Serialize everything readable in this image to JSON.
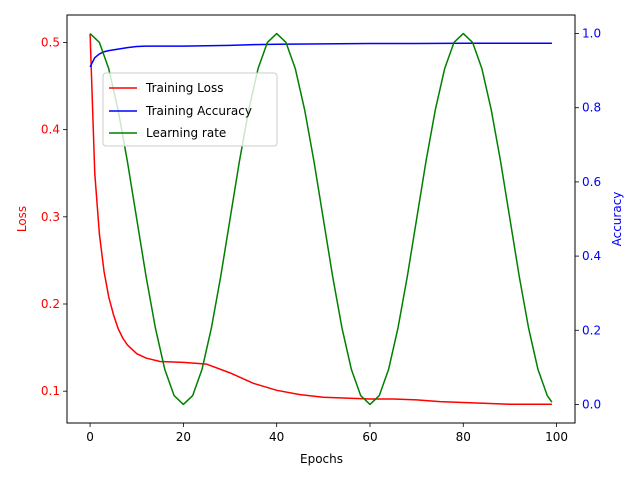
{
  "chart_data": {
    "type": "line",
    "title": "",
    "xlabel": "Epochs",
    "ylabel_left": "Loss",
    "ylabel_right": "Accuracy",
    "colors": {
      "loss": "#ff0000",
      "accuracy": "#0000ff",
      "lr": "#008000",
      "axis": "#000000"
    },
    "xlim": [
      -4.95,
      103.95
    ],
    "ylim_left": [
      0.0635,
      0.5315
    ],
    "ylim_right": [
      -0.05,
      1.05
    ],
    "x_ticks": [
      0,
      20,
      40,
      60,
      80,
      100
    ],
    "x_tick_labels": [
      "0",
      "20",
      "40",
      "60",
      "80",
      "100"
    ],
    "left_ticks": [
      0.1,
      0.2,
      0.3,
      0.4,
      0.5
    ],
    "left_tick_labels": [
      "0.1",
      "0.2",
      "0.3",
      "0.4",
      "0.5"
    ],
    "right_ticks": [
      0.0,
      0.2,
      0.4,
      0.6,
      0.8,
      1.0
    ],
    "right_tick_labels": [
      "0.0",
      "0.2",
      "0.4",
      "0.6",
      "0.8",
      "1.0"
    ],
    "legend": {
      "placement": "upper-left (inset)",
      "entries": [
        {
          "label": "Training Loss",
          "series": "loss"
        },
        {
          "label": "Training Accuracy",
          "series": "accuracy"
        },
        {
          "label": "Learning rate",
          "series": "lr"
        }
      ]
    },
    "series": [
      {
        "name": "Training Loss",
        "key": "loss",
        "axis": "left",
        "x": [
          0,
          1,
          2,
          3,
          4,
          5,
          6,
          7,
          8,
          10,
          12,
          15,
          20,
          25,
          30,
          35,
          40,
          45,
          50,
          55,
          60,
          65,
          70,
          75,
          80,
          85,
          90,
          95,
          99
        ],
        "values": [
          0.51,
          0.35,
          0.28,
          0.237,
          0.208,
          0.188,
          0.172,
          0.161,
          0.153,
          0.143,
          0.138,
          0.134,
          0.133,
          0.131,
          0.121,
          0.109,
          0.101,
          0.096,
          0.093,
          0.092,
          0.091,
          0.091,
          0.09,
          0.088,
          0.087,
          0.086,
          0.085,
          0.085,
          0.085
        ]
      },
      {
        "name": "Training Accuracy",
        "key": "accuracy",
        "axis": "right",
        "x": [
          0,
          1,
          2,
          3,
          4,
          5,
          6,
          8,
          10,
          12,
          15,
          20,
          25,
          30,
          35,
          40,
          50,
          60,
          70,
          80,
          90,
          99
        ],
        "values": [
          0.91,
          0.935,
          0.945,
          0.951,
          0.954,
          0.956,
          0.958,
          0.962,
          0.965,
          0.966,
          0.966,
          0.966,
          0.967,
          0.968,
          0.97,
          0.971,
          0.972,
          0.973,
          0.973,
          0.974,
          0.974,
          0.974
        ]
      },
      {
        "name": "Learning rate",
        "key": "lr",
        "axis": "right",
        "x": [
          0,
          2,
          4,
          6,
          8,
          10,
          12,
          14,
          16,
          18,
          20,
          22,
          24,
          26,
          28,
          30,
          32,
          34,
          36,
          38,
          40,
          42,
          44,
          46,
          48,
          50,
          52,
          54,
          56,
          58,
          60,
          62,
          64,
          66,
          68,
          70,
          72,
          74,
          76,
          78,
          80,
          82,
          84,
          86,
          88,
          90,
          92,
          94,
          96,
          98,
          99
        ],
        "values": [
          1.0,
          0.976,
          0.905,
          0.794,
          0.655,
          0.5,
          0.345,
          0.206,
          0.095,
          0.024,
          0.0,
          0.024,
          0.095,
          0.206,
          0.345,
          0.5,
          0.655,
          0.794,
          0.905,
          0.976,
          1.0,
          0.976,
          0.905,
          0.794,
          0.655,
          0.5,
          0.345,
          0.206,
          0.095,
          0.024,
          0.0,
          0.024,
          0.095,
          0.206,
          0.345,
          0.5,
          0.655,
          0.794,
          0.905,
          0.976,
          1.0,
          0.976,
          0.905,
          0.794,
          0.655,
          0.5,
          0.345,
          0.206,
          0.095,
          0.024,
          0.006
        ]
      }
    ]
  }
}
